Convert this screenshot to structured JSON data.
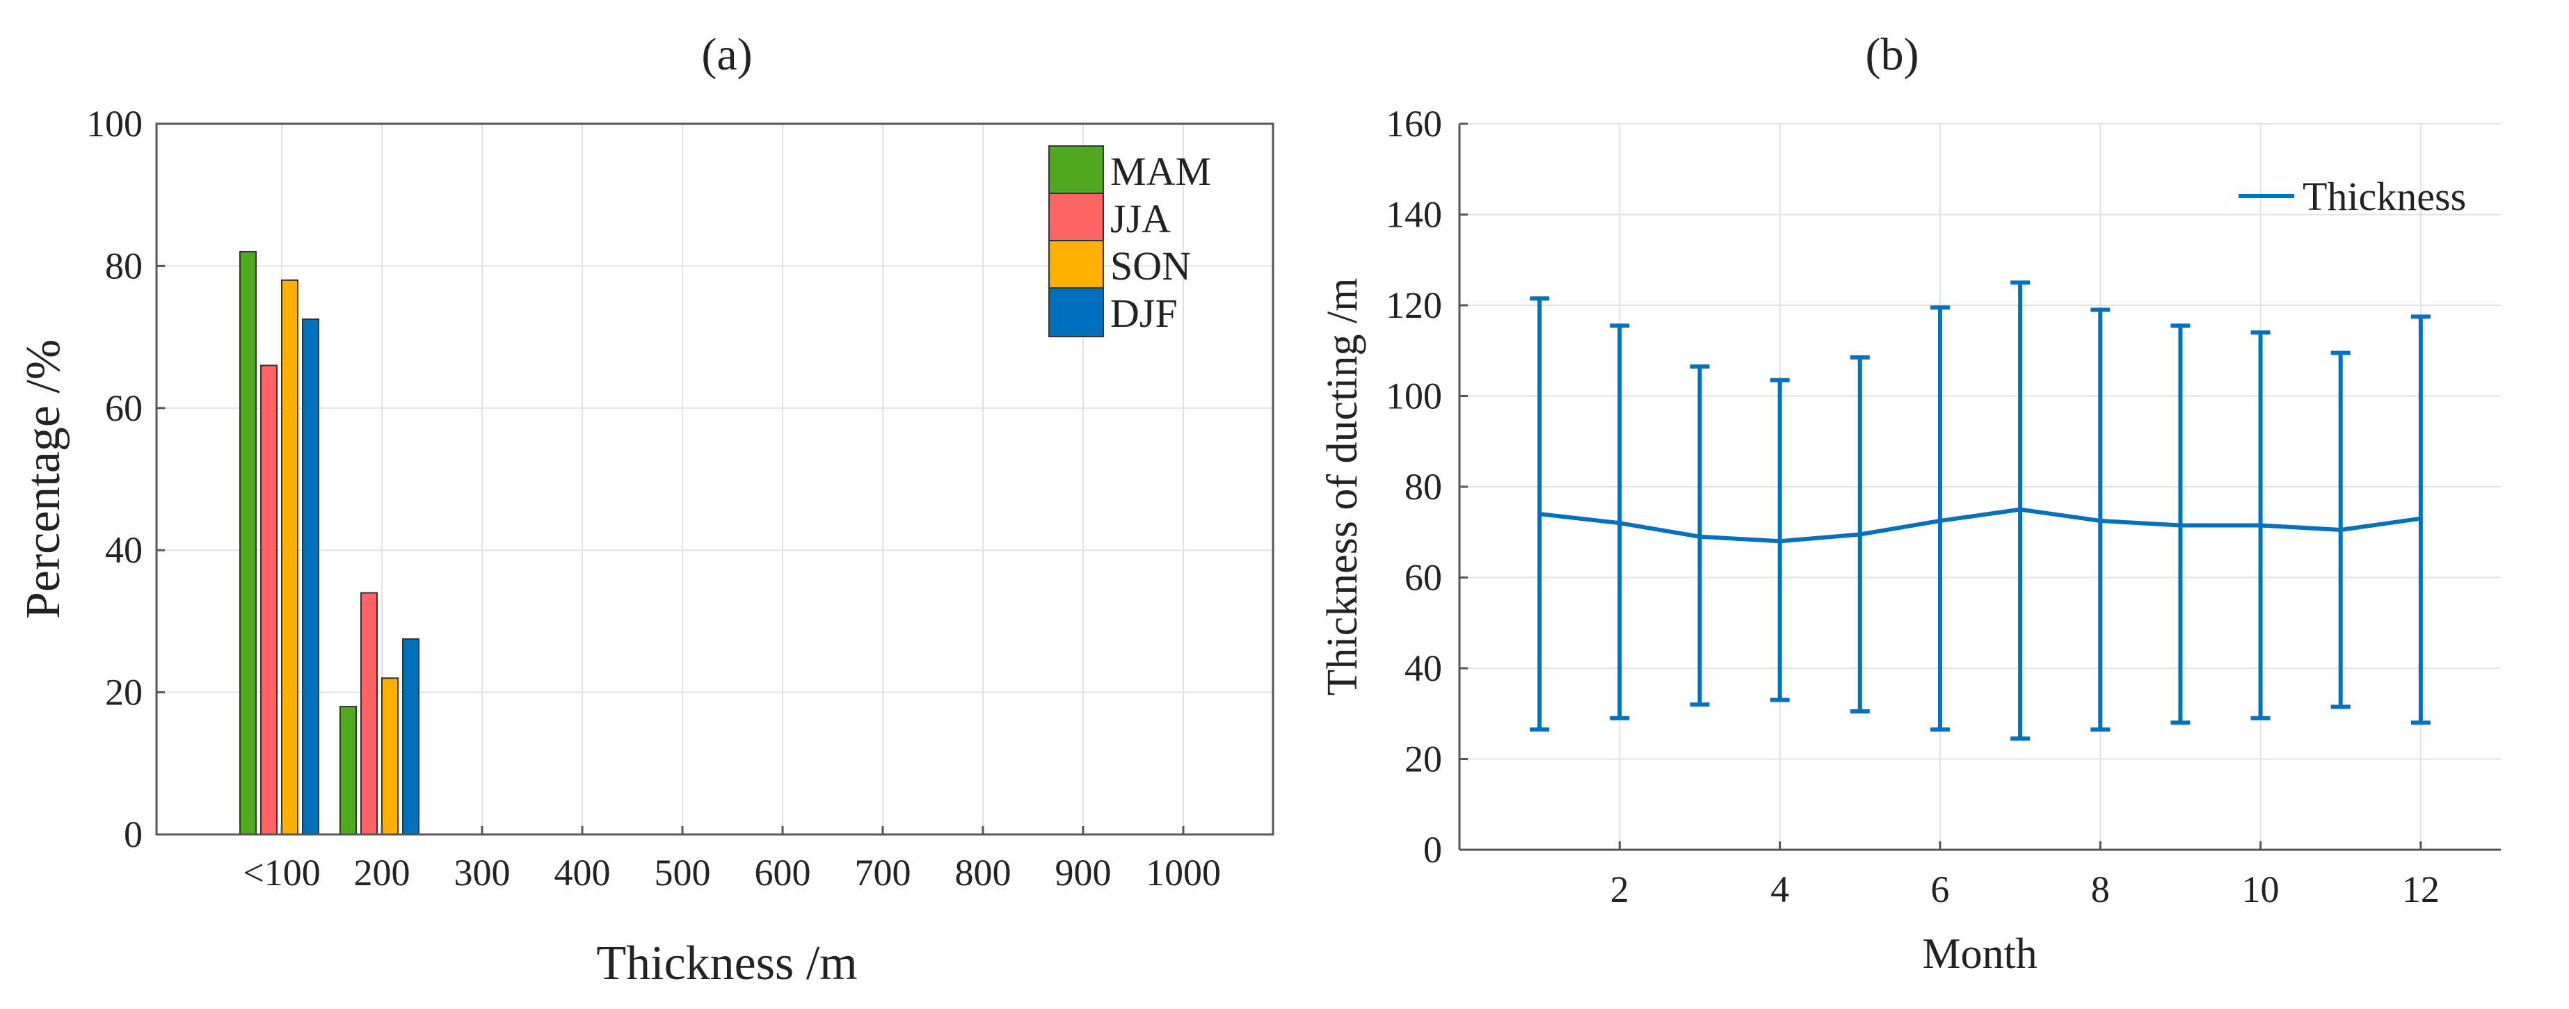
{
  "chart_data": [
    {
      "type": "bar",
      "panel_label": "(a)",
      "title": "",
      "xlabel": "Thickness /m",
      "ylabel": "Percentage /%",
      "categories": [
        "<100",
        "200",
        "300",
        "400",
        "500",
        "600",
        "700",
        "800",
        "900",
        "1000"
      ],
      "series": [
        {
          "name": "MAM",
          "color": "#4faa1e",
          "values": [
            82,
            18,
            0,
            0,
            0,
            0,
            0,
            0,
            0,
            0
          ]
        },
        {
          "name": "JJA",
          "color": "#ff6464",
          "values": [
            66,
            34,
            0,
            0,
            0,
            0,
            0,
            0,
            0,
            0
          ]
        },
        {
          "name": "SON",
          "color": "#ffb000",
          "values": [
            78,
            22,
            0,
            0,
            0,
            0,
            0,
            0,
            0,
            0
          ]
        },
        {
          "name": "DJF",
          "color": "#0072bd",
          "values": [
            72.5,
            27.5,
            0,
            0,
            0,
            0,
            0,
            0,
            0,
            0
          ]
        }
      ],
      "ylim": [
        0,
        100
      ],
      "yticks": [
        0,
        20,
        40,
        60,
        80,
        100
      ],
      "grid": true,
      "legend": "top-right"
    },
    {
      "type": "line",
      "panel_label": "(b)",
      "title": "",
      "xlabel": "Month",
      "ylabel": "Thickness of ducting /m",
      "series": [
        {
          "name": "Thickness",
          "color": "#0072bd",
          "x": [
            1,
            2,
            3,
            4,
            5,
            6,
            7,
            8,
            9,
            10,
            11,
            12
          ],
          "y": [
            74,
            72,
            69,
            68,
            69.5,
            72.5,
            75,
            72.5,
            71.5,
            71.5,
            70.5,
            73
          ],
          "error_low": [
            26.5,
            29,
            32,
            33,
            30.5,
            26.5,
            24.5,
            26.5,
            28,
            29,
            31.5,
            28
          ],
          "error_high": [
            121.5,
            115.5,
            106.5,
            103.5,
            108.5,
            119.5,
            125,
            119,
            115.5,
            114,
            109.5,
            117.5
          ]
        }
      ],
      "xlim": [
        0,
        13
      ],
      "xticks": [
        2,
        4,
        6,
        8,
        10,
        12
      ],
      "ylim": [
        0,
        160
      ],
      "yticks": [
        0,
        20,
        40,
        60,
        80,
        100,
        120,
        140,
        160
      ],
      "grid": true,
      "legend": "top-right"
    }
  ]
}
